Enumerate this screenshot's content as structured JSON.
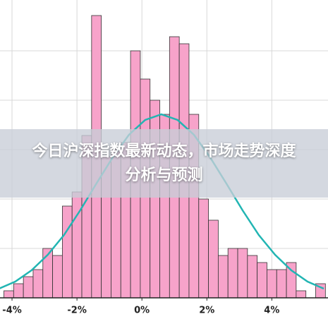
{
  "chart_data": {
    "type": "histogram",
    "bins": [
      -4.25,
      -3.95,
      -3.65,
      -3.35,
      -3.05,
      -2.75,
      -2.45,
      -2.15,
      -1.85,
      -1.55,
      -1.25,
      -0.95,
      -0.65,
      -0.35,
      -0.05,
      0.25,
      0.55,
      0.85,
      1.15,
      1.45,
      1.75,
      2.05,
      2.35,
      2.65,
      2.95,
      3.25,
      3.55,
      3.85,
      4.15,
      4.45,
      4.75,
      5.05,
      5.35,
      5.65
    ],
    "values": [
      1,
      2,
      3,
      4,
      7,
      6,
      13,
      15,
      23,
      40,
      20,
      21,
      22,
      35,
      31,
      28,
      26,
      37,
      36,
      26,
      14,
      11,
      6,
      7,
      7,
      6,
      5,
      4,
      4,
      5,
      1,
      0,
      2
    ],
    "color": "#f7a3ca",
    "edgecolor": "#333333",
    "curve": {
      "color": "#22b5b3",
      "x": [
        -4.4,
        -3.9,
        -3.4,
        -2.9,
        -2.4,
        -1.9,
        -1.4,
        -0.9,
        -0.4,
        0.1,
        0.6,
        1.1,
        1.6,
        2.1,
        2.6,
        3.1,
        3.6,
        4.1,
        4.6,
        5.1,
        5.6
      ],
      "values": [
        1.3,
        2.3,
        3.9,
        6.1,
        8.9,
        12.4,
        16.2,
        19.9,
        23.1,
        25.2,
        26,
        25.2,
        23.1,
        19.9,
        16.2,
        12.4,
        8.9,
        6.1,
        3.9,
        2.3,
        1.3
      ]
    },
    "xlim": [
      -4.37,
      5.73
    ],
    "ylim": [
      0,
      42.2
    ],
    "xticks": [
      {
        "value": -4,
        "label": "-4%"
      },
      {
        "value": -2,
        "label": "-2%"
      },
      {
        "value": 0,
        "label": "0%"
      },
      {
        "value": 2,
        "label": "2%"
      },
      {
        "value": 4,
        "label": "4%"
      }
    ],
    "yticks": [
      0,
      7,
      14,
      21,
      28,
      35
    ],
    "grid": true,
    "banner": "今日沪深指数最新动态，市场走势深度分析与预测"
  }
}
